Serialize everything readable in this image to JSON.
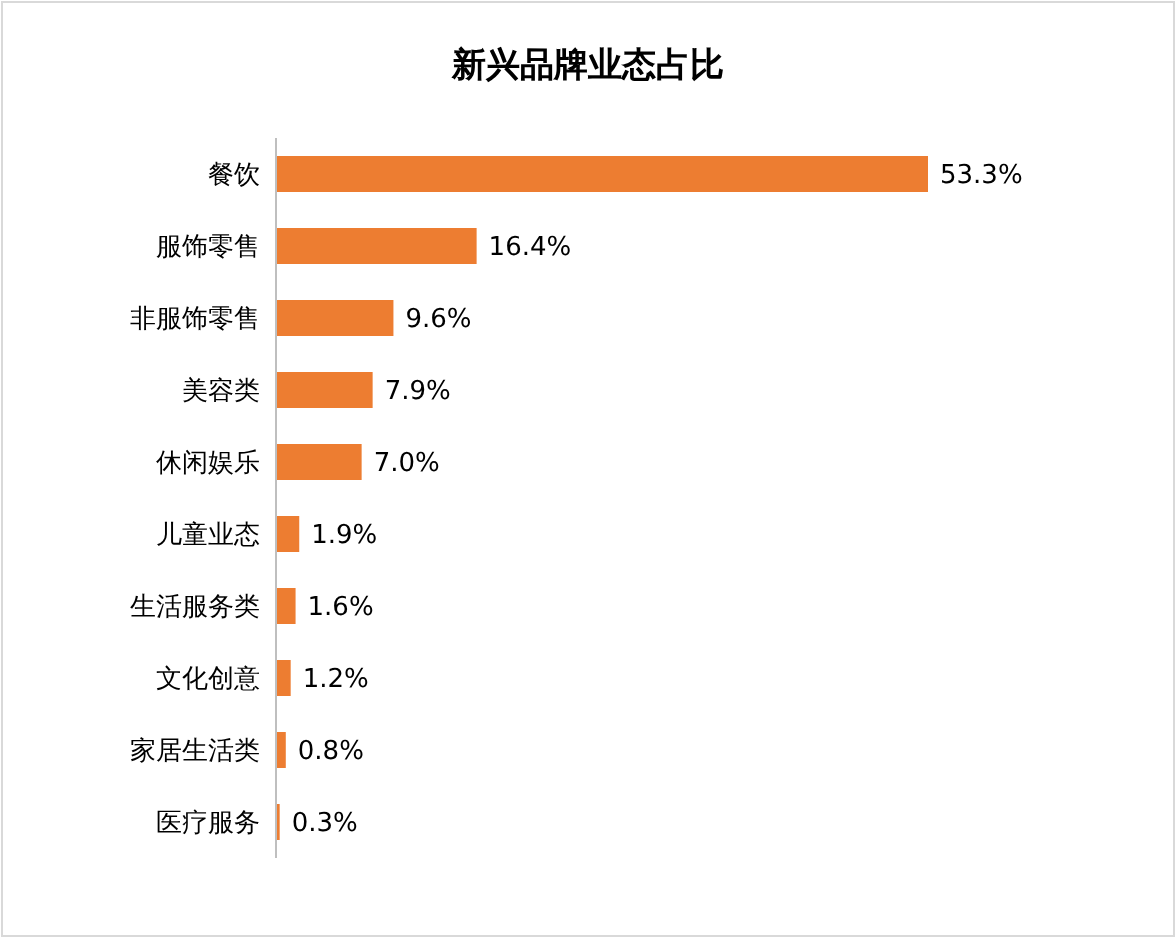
{
  "chart_data": {
    "type": "bar",
    "orientation": "horizontal",
    "title": "新兴品牌业态占比",
    "categories": [
      "餐饮",
      "服饰零售",
      "非服饰零售",
      "美容类",
      "休闲娱乐",
      "儿童业态",
      "生活服务类",
      "文化创意",
      "家居生活类",
      "医疗服务"
    ],
    "values": [
      53.3,
      16.4,
      9.6,
      7.9,
      7.0,
      1.9,
      1.6,
      1.2,
      0.8,
      0.3
    ],
    "value_labels": [
      "53.3%",
      "16.4%",
      "9.6%",
      "7.9%",
      "7.0%",
      "1.9%",
      "1.6%",
      "1.2%",
      "0.8%",
      "0.3%"
    ],
    "color": "#ed7d31",
    "xlim": [
      0,
      53.3
    ],
    "tick_labels": "y"
  }
}
